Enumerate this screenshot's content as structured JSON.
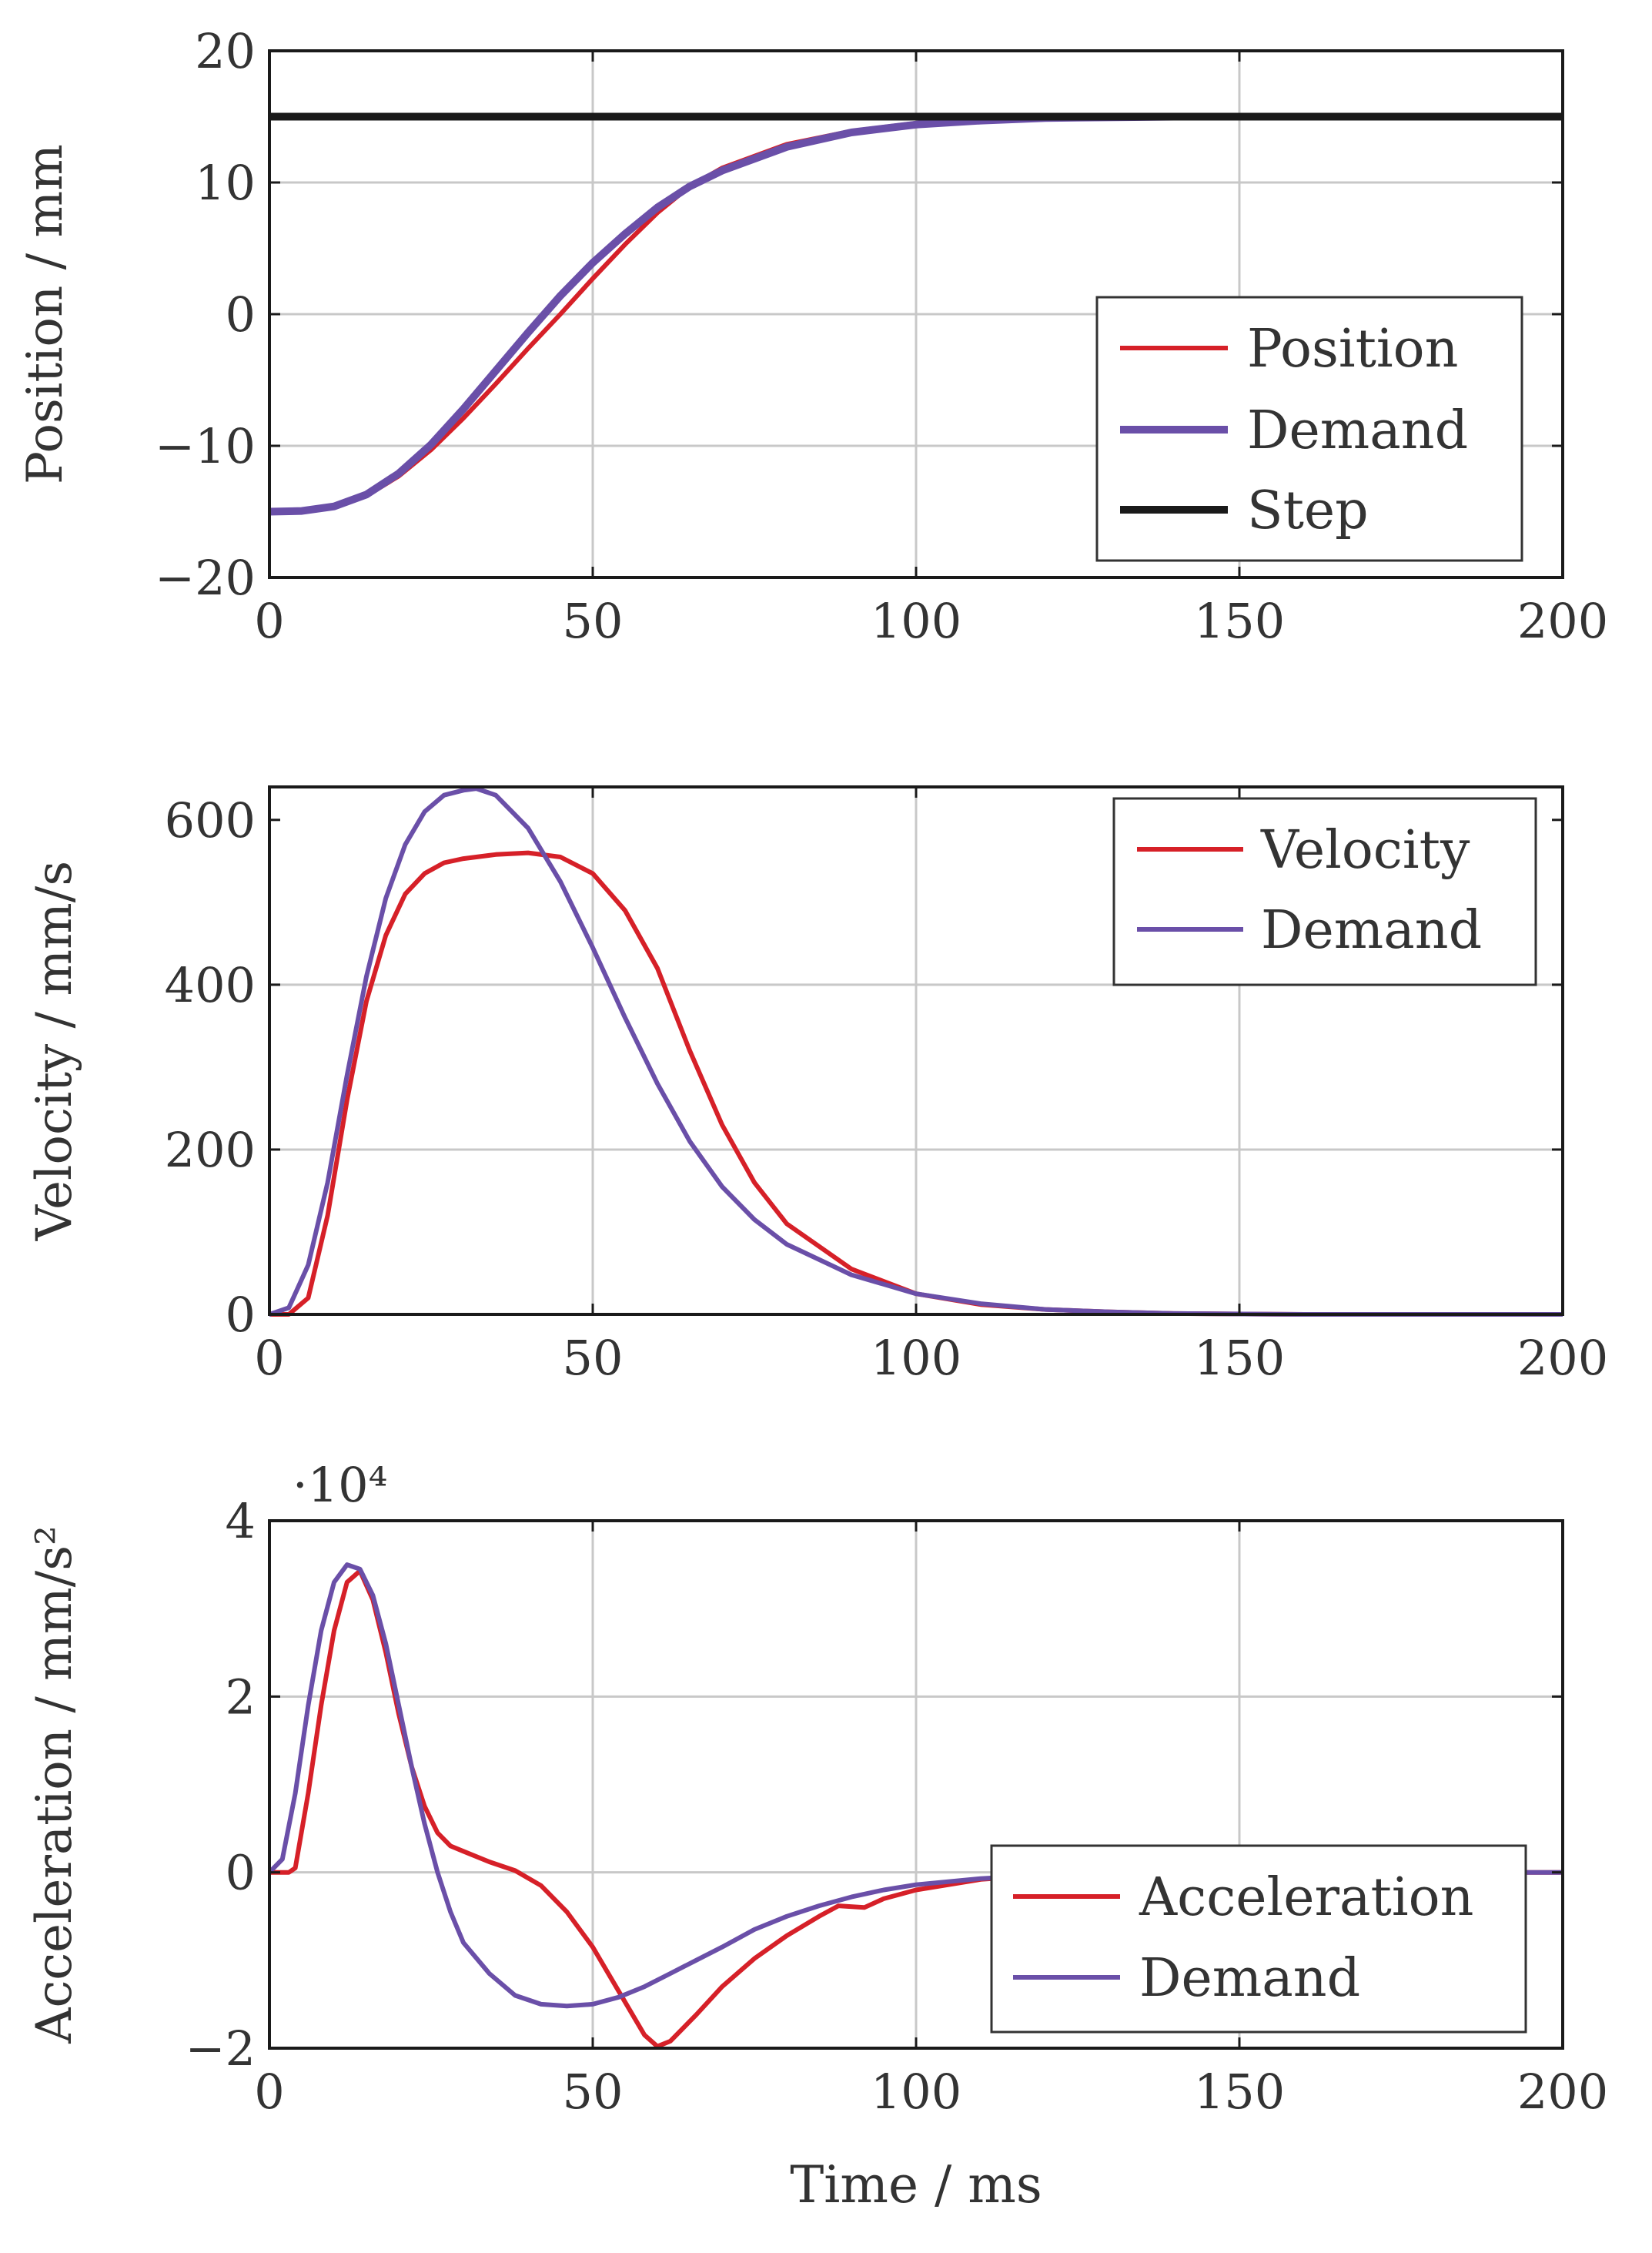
{
  "colors": {
    "red": "#d62028",
    "purple": "#6a4fa8",
    "black": "#1a1a1a"
  },
  "chart_data": [
    {
      "type": "line",
      "id": "position",
      "ylabel": "Position / mm",
      "xlabel": "",
      "xlim": [
        0,
        200
      ],
      "ylim": [
        -20,
        20
      ],
      "xticks": [
        0,
        50,
        100,
        150,
        200
      ],
      "yticks": [
        -20,
        -10,
        0,
        10,
        20
      ],
      "xtick_labels": [
        "0",
        "50",
        "100",
        "150",
        "200"
      ],
      "ytick_labels": [
        "−20",
        "−10",
        "0",
        "10",
        "20"
      ],
      "grid": true,
      "legend_position": "bottom-right",
      "series": [
        {
          "name": "Position",
          "color": "#d62028",
          "thickness": "thin",
          "x": [
            0,
            5,
            10,
            15,
            20,
            25,
            30,
            35,
            40,
            45,
            50,
            55,
            60,
            65,
            70,
            80,
            90,
            100,
            110,
            120,
            140,
            160,
            180,
            200
          ],
          "y": [
            -15,
            -14.95,
            -14.6,
            -13.8,
            -12.3,
            -10.3,
            -7.9,
            -5.3,
            -2.6,
            0,
            2.7,
            5.3,
            7.7,
            9.7,
            11.1,
            12.9,
            13.9,
            14.5,
            14.8,
            14.9,
            15,
            15,
            15,
            15
          ]
        },
        {
          "name": "Demand",
          "color": "#6a4fa8",
          "thickness": "thick",
          "x": [
            0,
            5,
            10,
            15,
            20,
            25,
            30,
            35,
            40,
            45,
            50,
            55,
            60,
            65,
            70,
            80,
            90,
            100,
            110,
            120,
            140,
            160,
            180,
            200
          ],
          "y": [
            -15,
            -14.95,
            -14.6,
            -13.7,
            -12.1,
            -9.9,
            -7.2,
            -4.3,
            -1.4,
            1.4,
            3.9,
            6.1,
            8.1,
            9.7,
            10.9,
            12.7,
            13.8,
            14.4,
            14.7,
            14.9,
            15,
            15,
            15,
            15
          ]
        },
        {
          "name": "Step",
          "color": "#1a1a1a",
          "thickness": "thick",
          "x": [
            0,
            200
          ],
          "y": [
            15,
            15
          ]
        }
      ]
    },
    {
      "type": "line",
      "id": "velocity",
      "ylabel": "Velocity / mm/s",
      "xlabel": "",
      "xlim": [
        0,
        200
      ],
      "ylim": [
        0,
        640
      ],
      "xticks": [
        0,
        50,
        100,
        150,
        200
      ],
      "yticks": [
        0,
        200,
        400,
        600
      ],
      "xtick_labels": [
        "0",
        "50",
        "100",
        "150",
        "200"
      ],
      "ytick_labels": [
        "0",
        "200",
        "400",
        "600"
      ],
      "grid": true,
      "legend_position": "top-right",
      "series": [
        {
          "name": "Velocity",
          "color": "#d62028",
          "thickness": "thin",
          "x": [
            0,
            3,
            6,
            9,
            12,
            15,
            18,
            21,
            24,
            27,
            30,
            35,
            40,
            45,
            50,
            55,
            60,
            65,
            70,
            75,
            80,
            90,
            100,
            110,
            120,
            130,
            140,
            160,
            180,
            200
          ],
          "y": [
            0,
            0,
            20,
            120,
            260,
            380,
            460,
            510,
            535,
            548,
            553,
            558,
            560,
            555,
            535,
            490,
            420,
            320,
            230,
            160,
            110,
            55,
            25,
            12,
            6,
            3,
            1,
            0,
            0,
            0
          ]
        },
        {
          "name": "Demand",
          "color": "#6a4fa8",
          "thickness": "thin",
          "x": [
            0,
            3,
            6,
            9,
            12,
            15,
            18,
            21,
            24,
            27,
            30,
            32,
            35,
            40,
            45,
            50,
            55,
            60,
            65,
            70,
            75,
            80,
            90,
            100,
            110,
            120,
            130,
            140,
            160,
            180,
            200
          ],
          "y": [
            0,
            8,
            60,
            160,
            290,
            410,
            505,
            570,
            610,
            630,
            636,
            638,
            630,
            590,
            525,
            445,
            360,
            280,
            210,
            155,
            115,
            85,
            48,
            25,
            13,
            6,
            3,
            1,
            0,
            0,
            0
          ]
        }
      ]
    },
    {
      "type": "line",
      "id": "acceleration",
      "ylabel": "Acceleration / mm/s²",
      "xlabel": "Time / ms",
      "multiplier": "·10⁴",
      "xlim": [
        0,
        200
      ],
      "ylim": [
        -2,
        4
      ],
      "xticks": [
        0,
        50,
        100,
        150,
        200
      ],
      "yticks": [
        -2,
        0,
        2,
        4
      ],
      "xtick_labels": [
        "0",
        "50",
        "100",
        "150",
        "200"
      ],
      "ytick_labels": [
        "−2",
        "0",
        "2",
        "4"
      ],
      "grid": true,
      "legend_position": "bottom-right",
      "series": [
        {
          "name": "Acceleration",
          "color": "#d62028",
          "thickness": "thin",
          "x": [
            0,
            2,
            3,
            4,
            6,
            8,
            10,
            12,
            14,
            16,
            18,
            20,
            22,
            24,
            26,
            28,
            30,
            34,
            38,
            42,
            46,
            50,
            54,
            58,
            60,
            62,
            66,
            70,
            75,
            80,
            85,
            88,
            92,
            95,
            100,
            110,
            120,
            140,
            160,
            180,
            200
          ],
          "y": [
            0,
            0,
            0,
            0.05,
            0.9,
            1.9,
            2.75,
            3.3,
            3.43,
            3.1,
            2.5,
            1.8,
            1.2,
            0.75,
            0.45,
            0.3,
            0.24,
            0.12,
            0.02,
            -0.15,
            -0.45,
            -0.85,
            -1.35,
            -1.85,
            -1.98,
            -1.92,
            -1.62,
            -1.3,
            -0.98,
            -0.72,
            -0.5,
            -0.38,
            -0.4,
            -0.3,
            -0.2,
            -0.08,
            -0.03,
            -0.01,
            0,
            0,
            0
          ]
        },
        {
          "name": "Demand",
          "color": "#6a4fa8",
          "thickness": "thin",
          "x": [
            0,
            2,
            4,
            6,
            8,
            10,
            12,
            14,
            16,
            18,
            20,
            22,
            24,
            26,
            28,
            30,
            34,
            38,
            42,
            46,
            50,
            54,
            58,
            62,
            66,
            70,
            75,
            80,
            85,
            90,
            95,
            100,
            110,
            120,
            140,
            160,
            180,
            200
          ],
          "y": [
            0,
            0.15,
            0.9,
            1.9,
            2.75,
            3.3,
            3.5,
            3.45,
            3.15,
            2.6,
            1.9,
            1.2,
            0.55,
            0,
            -0.45,
            -0.8,
            -1.15,
            -1.4,
            -1.5,
            -1.52,
            -1.5,
            -1.42,
            -1.3,
            -1.15,
            -1.0,
            -0.85,
            -0.65,
            -0.5,
            -0.38,
            -0.28,
            -0.2,
            -0.14,
            -0.07,
            -0.03,
            -0.01,
            0,
            0,
            0
          ]
        }
      ]
    }
  ]
}
